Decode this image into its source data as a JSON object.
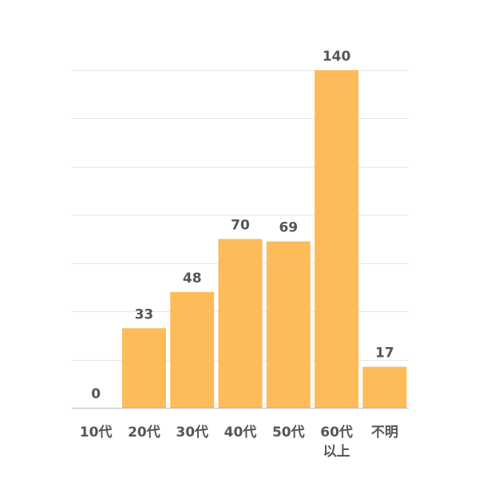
{
  "chart_data": {
    "type": "bar",
    "categories": [
      "10代",
      "20代",
      "30代",
      "40代",
      "50代",
      "60代以上",
      "不明"
    ],
    "category_display": [
      [
        "10代"
      ],
      [
        "20代"
      ],
      [
        "30代"
      ],
      [
        "40代"
      ],
      [
        "50代"
      ],
      [
        "60代",
        "以上"
      ],
      [
        "不明"
      ]
    ],
    "values": [
      0,
      33,
      48,
      70,
      69,
      140,
      17
    ],
    "value_labels": [
      "0",
      "33",
      "48",
      "70",
      "69",
      "140",
      "17"
    ],
    "ylim": [
      0,
      140
    ],
    "y_tick_step": 20,
    "grid": true,
    "legend": "none",
    "title": "",
    "xlabel": "",
    "ylabel": ""
  },
  "colors": {
    "bar": "#FDBB5A",
    "grid": "#E6E6E6",
    "axis": "#BBBBBB",
    "text": "#555555"
  }
}
